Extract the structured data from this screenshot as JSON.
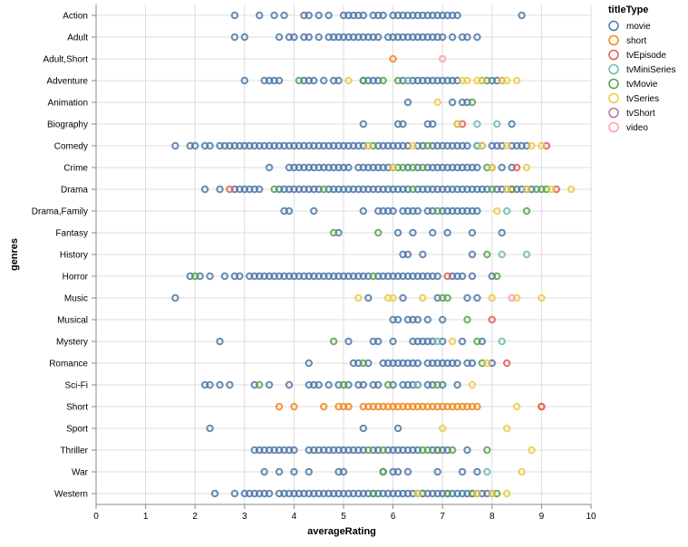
{
  "chart_data": {
    "type": "scatter",
    "title": "",
    "xlabel": "averageRating",
    "ylabel": "genres",
    "xlim": [
      0,
      10
    ],
    "x_ticks": [
      0,
      1,
      2,
      3,
      4,
      5,
      6,
      7,
      8,
      9,
      10
    ],
    "grid": true,
    "marker": "hollow circle",
    "legend": {
      "title": "titleType",
      "placement": "right"
    },
    "categories": [
      "Action",
      "Adult",
      "Adult,Short",
      "Adventure",
      "Animation",
      "Biography",
      "Comedy",
      "Crime",
      "Drama",
      "Drama,Family",
      "Fantasy",
      "History",
      "Horror",
      "Music",
      "Musical",
      "Mystery",
      "Romance",
      "Sci-Fi",
      "Short",
      "Sport",
      "Thriller",
      "War",
      "Western"
    ],
    "series": [
      {
        "name": "movie",
        "color": "#4c78a8",
        "points": {
          "Action": [
            2.8,
            3.3,
            3.6,
            3.8,
            4.2,
            4.3,
            4.5,
            4.7,
            5.0,
            5.1,
            5.2,
            5.3,
            5.4,
            5.6,
            5.7,
            5.8,
            6.0,
            6.1,
            6.2,
            6.3,
            6.4,
            6.5,
            6.6,
            6.7,
            6.8,
            6.9,
            7.0,
            7.1,
            7.2,
            7.3,
            8.6
          ],
          "Adult": [
            2.8,
            3.0,
            3.7,
            3.9,
            4.0,
            4.2,
            4.3,
            4.5,
            4.7,
            4.8,
            4.9,
            5.0,
            5.1,
            5.2,
            5.3,
            5.4,
            5.5,
            5.6,
            5.7,
            5.9,
            6.0,
            6.1,
            6.2,
            6.3,
            6.4,
            6.5,
            6.6,
            6.7,
            6.8,
            6.9,
            7.0,
            7.2,
            7.4,
            7.5,
            7.7
          ],
          "Adventure": [
            3.0,
            3.4,
            3.5,
            3.6,
            3.7,
            4.2,
            4.3,
            4.4,
            4.6,
            4.8,
            4.9,
            5.4,
            5.5,
            5.6,
            5.7,
            6.2,
            6.3,
            6.4,
            6.5,
            6.6,
            6.7,
            6.8,
            6.9,
            7.0,
            7.1,
            7.2,
            7.3,
            7.8,
            8.0,
            8.1,
            8.2
          ],
          "Animation": [
            6.3,
            7.2,
            7.4,
            7.5
          ],
          "Biography": [
            5.4,
            6.1,
            6.2,
            6.7,
            6.8,
            7.3,
            8.4
          ],
          "Comedy": [
            1.6,
            1.9,
            2.0,
            2.2,
            2.3,
            2.5,
            2.6,
            2.7,
            2.8,
            2.9,
            3.0,
            3.1,
            3.2,
            3.3,
            3.4,
            3.5,
            3.6,
            3.7,
            3.8,
            3.9,
            4.0,
            4.1,
            4.2,
            4.3,
            4.4,
            4.5,
            4.6,
            4.7,
            4.8,
            4.9,
            5.0,
            5.1,
            5.2,
            5.3,
            5.4,
            5.5,
            5.7,
            5.8,
            5.9,
            6.0,
            6.1,
            6.2,
            6.3,
            6.5,
            6.6,
            6.8,
            6.9,
            7.0,
            7.1,
            7.2,
            7.3,
            7.4,
            7.5,
            7.7,
            7.8,
            8.0,
            8.1,
            8.2,
            8.4,
            8.5,
            8.6,
            8.7
          ],
          "Crime": [
            3.5,
            3.9,
            4.0,
            4.1,
            4.2,
            4.3,
            4.4,
            4.5,
            4.6,
            4.7,
            4.8,
            4.9,
            5.0,
            5.1,
            5.3,
            5.4,
            5.5,
            5.6,
            5.7,
            5.8,
            5.9,
            6.0,
            6.3,
            6.5,
            6.7,
            6.8,
            6.9,
            7.0,
            7.1,
            7.2,
            7.3,
            7.4,
            7.5,
            7.6,
            7.7,
            8.0,
            8.2,
            8.4
          ],
          "Drama": [
            2.2,
            2.5,
            2.8,
            2.9,
            3.0,
            3.1,
            3.2,
            3.3,
            3.7,
            3.8,
            3.9,
            4.0,
            4.1,
            4.2,
            4.3,
            4.4,
            4.5,
            4.7,
            4.8,
            4.9,
            5.0,
            5.1,
            5.2,
            5.3,
            5.4,
            5.5,
            5.6,
            5.7,
            5.8,
            5.9,
            6.0,
            6.1,
            6.2,
            6.3,
            6.5,
            6.6,
            6.7,
            6.8,
            6.9,
            7.0,
            7.1,
            7.2,
            7.3,
            7.4,
            7.5,
            7.6,
            7.7,
            7.8,
            7.9,
            8.1,
            8.2,
            8.3,
            8.5,
            8.6,
            8.7,
            8.8
          ],
          "Drama,Family": [
            3.8,
            3.9,
            4.4,
            5.4,
            5.7,
            5.8,
            5.9,
            6.0,
            6.2,
            6.3,
            6.4,
            6.5,
            6.7,
            6.8,
            7.0,
            7.1,
            7.2,
            7.3,
            7.4,
            7.5,
            7.6,
            7.7
          ],
          "Fantasy": [
            4.9,
            6.1,
            6.4,
            6.8,
            7.1,
            7.6,
            8.2
          ],
          "History": [
            6.2,
            6.3,
            6.6,
            7.6
          ],
          "Horror": [
            1.9,
            2.1,
            2.3,
            2.6,
            2.8,
            2.9,
            3.1,
            3.2,
            3.3,
            3.4,
            3.5,
            3.6,
            3.7,
            3.8,
            3.9,
            4.0,
            4.1,
            4.2,
            4.3,
            4.4,
            4.5,
            4.6,
            4.7,
            4.8,
            4.9,
            5.0,
            5.1,
            5.2,
            5.3,
            5.4,
            5.5,
            5.7,
            5.8,
            5.9,
            6.0,
            6.1,
            6.2,
            6.3,
            6.4,
            6.5,
            6.6,
            6.7,
            6.8,
            6.9,
            7.2,
            7.3,
            7.4,
            7.6,
            8.0
          ],
          "Music": [
            1.6,
            5.5,
            6.2,
            6.9,
            7.5,
            7.7
          ],
          "Musical": [
            6.0,
            6.1,
            6.3,
            6.4,
            6.5,
            6.7,
            7.0
          ],
          "Mystery": [
            2.5,
            5.1,
            5.6,
            5.7,
            6.0,
            6.4,
            6.5,
            6.6,
            6.7,
            6.8,
            7.0,
            7.4,
            7.8
          ],
          "Romance": [
            4.3,
            5.2,
            5.3,
            5.5,
            5.8,
            5.9,
            6.0,
            6.1,
            6.2,
            6.3,
            6.4,
            6.5,
            6.7,
            6.8,
            6.9,
            7.0,
            7.1,
            7.2,
            7.3,
            7.5,
            7.6,
            8.0
          ],
          "Sci-Fi": [
            2.2,
            2.3,
            2.5,
            2.7,
            3.2,
            3.5,
            3.9,
            4.3,
            4.4,
            4.5,
            4.7,
            4.9,
            5.1,
            5.3,
            5.4,
            5.6,
            5.7,
            6.0,
            6.2,
            6.3,
            6.4,
            6.5,
            6.7,
            6.8,
            7.0,
            7.3
          ],
          "Sport": [
            2.3,
            5.4,
            6.1
          ],
          "Thriller": [
            3.2,
            3.3,
            3.4,
            3.5,
            3.6,
            3.7,
            3.8,
            3.9,
            4.0,
            4.3,
            4.4,
            4.5,
            4.6,
            4.7,
            4.8,
            4.9,
            5.0,
            5.1,
            5.2,
            5.3,
            5.4,
            5.6,
            5.7,
            5.9,
            6.0,
            6.1,
            6.2,
            6.3,
            6.4,
            6.5,
            6.8,
            6.9,
            7.0,
            7.1,
            7.5
          ],
          "War": [
            3.4,
            3.7,
            4.0,
            4.3,
            4.9,
            5.0,
            5.8,
            6.0,
            6.1,
            6.3,
            6.9,
            7.4,
            7.7
          ],
          "Western": [
            2.4,
            2.8,
            3.0,
            3.1,
            3.2,
            3.3,
            3.4,
            3.5,
            3.7,
            3.8,
            3.9,
            4.0,
            4.1,
            4.2,
            4.3,
            4.4,
            4.5,
            4.6,
            4.7,
            4.8,
            4.9,
            5.0,
            5.1,
            5.2,
            5.3,
            5.4,
            5.5,
            5.6,
            5.7,
            5.8,
            5.9,
            6.0,
            6.1,
            6.2,
            6.3,
            6.4,
            6.5,
            6.6,
            6.7,
            6.8,
            6.9,
            7.0,
            7.1,
            7.2,
            7.3,
            7.4,
            7.5,
            7.6,
            7.7,
            7.8,
            7.9,
            8.0
          ]
        }
      },
      {
        "name": "short",
        "color": "#f58518",
        "points": {
          "Adult,Short": [
            6.0
          ],
          "Short": [
            3.7,
            4.0,
            4.6,
            4.9,
            5.0,
            5.1,
            5.4,
            5.5,
            5.6,
            5.7,
            5.8,
            5.9,
            6.0,
            6.1,
            6.2,
            6.3,
            6.4,
            6.5,
            6.6,
            6.7,
            6.8,
            6.9,
            7.0,
            7.1,
            7.2,
            7.3,
            7.4,
            7.5,
            7.6,
            7.7,
            9.0
          ]
        }
      },
      {
        "name": "tvEpisode",
        "color": "#e45756",
        "points": {
          "Biography": [
            7.4
          ],
          "Comedy": [
            9.1
          ],
          "Crime": [
            8.5
          ],
          "Drama": [
            2.7,
            8.4,
            9.3
          ],
          "Horror": [
            7.1
          ],
          "Musical": [
            8.0
          ],
          "Romance": [
            8.3
          ],
          "Short": [
            9.0
          ]
        }
      },
      {
        "name": "tvMiniSeries",
        "color": "#72b7b2",
        "points": {
          "Adventure": [
            6.3
          ],
          "Biography": [
            7.7,
            8.1
          ],
          "Comedy": [
            7.7
          ],
          "Drama,Family": [
            8.3
          ],
          "History": [
            8.2,
            8.7
          ],
          "Mystery": [
            6.9,
            8.2
          ],
          "Sci-Fi": [
            6.5
          ],
          "War": [
            7.9
          ],
          "Western": [
            6.5
          ]
        }
      },
      {
        "name": "tvMovie",
        "color": "#54a24b",
        "points": {
          "Adventure": [
            4.1,
            5.4,
            5.8,
            6.1,
            7.9
          ],
          "Animation": [
            7.6
          ],
          "Comedy": [
            5.6,
            6.7
          ],
          "Crime": [
            6.1,
            6.2,
            6.4,
            6.6,
            7.9
          ],
          "Drama": [
            3.6,
            4.6,
            6.4,
            8.0,
            8.4,
            8.9,
            9.0,
            9.1
          ],
          "Drama,Family": [
            6.9,
            8.7
          ],
          "Fantasy": [
            4.8,
            5.7
          ],
          "History": [
            7.9
          ],
          "Horror": [
            2.0,
            5.6,
            8.1
          ],
          "Music": [
            7.0,
            7.1
          ],
          "Musical": [
            7.5
          ],
          "Mystery": [
            4.8,
            7.7
          ],
          "Romance": [
            5.4,
            7.8
          ],
          "Sci-Fi": [
            3.3,
            5.0,
            5.9,
            6.9
          ],
          "Thriller": [
            5.5,
            5.8,
            6.6,
            6.7,
            6.9,
            7.2,
            7.9
          ],
          "War": [
            5.8
          ],
          "Western": [
            5.6,
            6.6,
            7.1,
            7.6,
            8.1
          ]
        }
      },
      {
        "name": "tvSeries",
        "color": "#eeca3b",
        "points": {
          "Adventure": [
            5.1,
            7.4,
            7.5,
            7.7,
            7.8,
            8.2,
            8.3,
            8.5
          ],
          "Animation": [
            6.9
          ],
          "Biography": [
            7.3
          ],
          "Comedy": [
            5.5,
            6.4,
            7.8,
            8.3,
            8.8,
            9.0
          ],
          "Crime": [
            6.0,
            8.0,
            8.7
          ],
          "Drama": [
            8.3,
            8.7,
            9.2,
            9.6
          ],
          "Drama,Family": [
            8.1
          ],
          "Music": [
            5.3,
            5.9,
            6.0,
            6.6,
            8.0,
            8.5,
            9.0
          ],
          "Mystery": [
            7.2
          ],
          "Romance": [
            7.9
          ],
          "Sci-Fi": [
            7.6
          ],
          "Short": [
            8.5
          ],
          "Sport": [
            7.0,
            8.3
          ],
          "Thriller": [
            8.8
          ],
          "War": [
            8.6
          ],
          "Western": [
            6.5,
            7.7,
            8.0,
            8.3
          ]
        }
      },
      {
        "name": "tvShort",
        "color": "#b279a2",
        "points": {}
      },
      {
        "name": "video",
        "color": "#ff9da6",
        "points": {
          "Adult,Short": [
            7.0
          ],
          "Music": [
            8.4
          ]
        }
      }
    ]
  }
}
